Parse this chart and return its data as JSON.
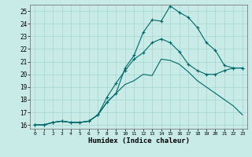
{
  "xlabel": "Humidex (Indice chaleur)",
  "bg_color": "#c8ebe8",
  "grid_color": "#a8d5d0",
  "line_color": "#006868",
  "xlim": [
    -0.5,
    23.5
  ],
  "ylim": [
    15.7,
    25.5
  ],
  "xticks": [
    0,
    1,
    2,
    3,
    4,
    5,
    6,
    7,
    8,
    9,
    10,
    11,
    12,
    13,
    14,
    15,
    16,
    17,
    18,
    19,
    20,
    21,
    22,
    23
  ],
  "yticks": [
    16,
    17,
    18,
    19,
    20,
    21,
    22,
    23,
    24,
    25
  ],
  "line1_x": [
    0,
    1,
    2,
    3,
    4,
    5,
    6,
    7,
    8,
    9,
    10,
    11,
    12,
    13,
    14,
    15,
    16,
    17,
    18,
    19,
    20,
    21,
    22,
    23
  ],
  "line1_y": [
    16,
    16,
    16.2,
    16.3,
    16.2,
    16.2,
    16.3,
    16.8,
    17.8,
    18.5,
    20.5,
    21.5,
    23.3,
    24.3,
    24.2,
    25.4,
    24.9,
    24.5,
    23.7,
    22.5,
    21.9,
    20.7,
    20.5,
    20.5
  ],
  "line2_x": [
    0,
    1,
    2,
    3,
    4,
    5,
    6,
    7,
    8,
    9,
    10,
    11,
    12,
    13,
    14,
    15,
    16,
    17,
    18,
    19,
    20,
    21,
    22,
    23
  ],
  "line2_y": [
    16,
    16,
    16.2,
    16.3,
    16.2,
    16.2,
    16.3,
    16.8,
    17.8,
    18.5,
    19.2,
    19.5,
    20.0,
    19.9,
    21.2,
    21.1,
    20.8,
    20.2,
    19.5,
    19.0,
    18.5,
    18.0,
    17.5,
    16.8
  ],
  "line3_x": [
    0,
    1,
    2,
    3,
    4,
    5,
    6,
    7,
    8,
    9,
    10,
    11,
    12,
    13,
    14,
    15,
    16,
    17,
    18,
    19,
    20,
    21,
    22,
    23
  ],
  "line3_y": [
    16,
    16,
    16.2,
    16.3,
    16.2,
    16.2,
    16.3,
    16.8,
    18.2,
    19.3,
    20.3,
    21.2,
    21.7,
    22.5,
    22.8,
    22.5,
    21.8,
    20.8,
    20.3,
    20.0,
    20.0,
    20.3,
    20.5,
    20.5
  ]
}
